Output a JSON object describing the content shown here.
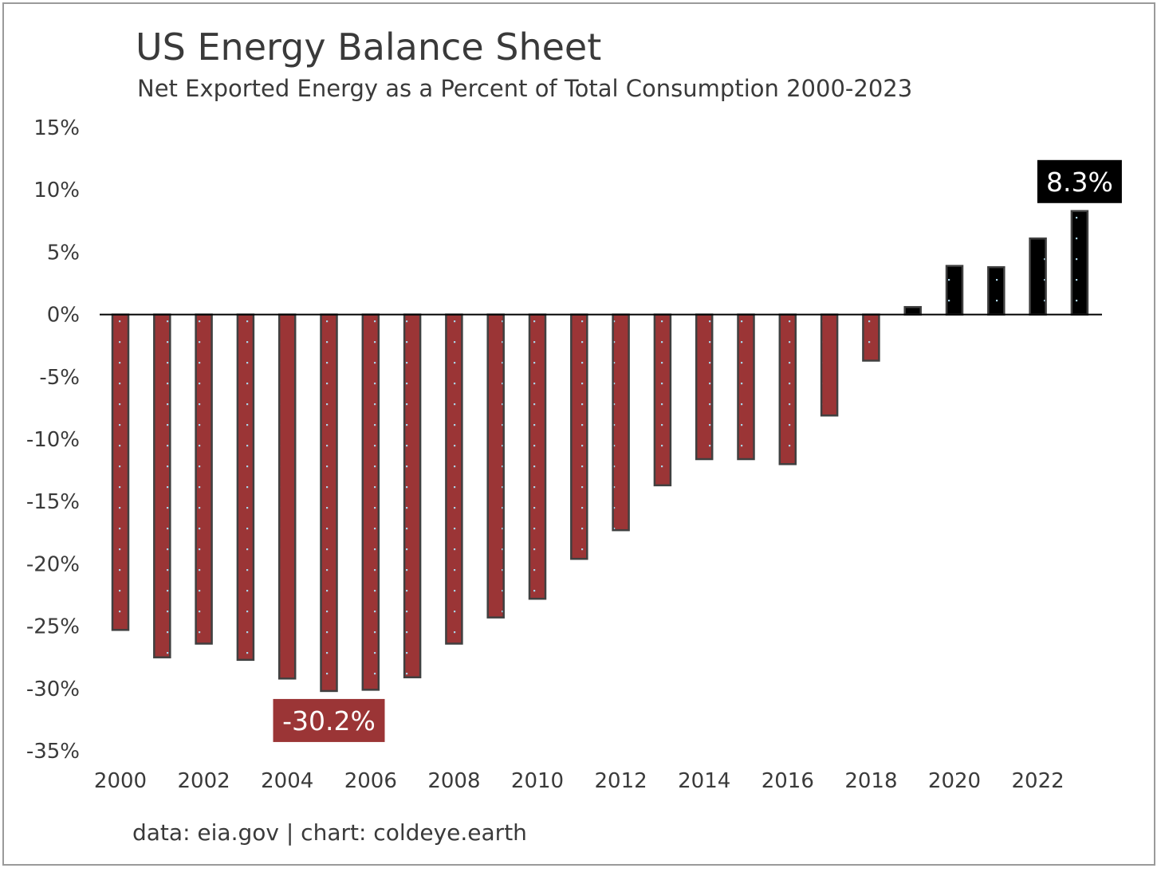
{
  "title": "US Energy Balance Sheet",
  "subtitle": "Net Exported Energy as a Percent of Total Consumption 2000-2023",
  "source": "data: eia.gov | chart: coldeye.earth",
  "colors": {
    "negative": "#9b3536",
    "positive": "#000000",
    "bar_outline": "#404040",
    "pattern_dot": "#a9d4e8",
    "text": "#3a3a3a"
  },
  "chart_data": {
    "type": "bar",
    "title": "US Energy Balance Sheet",
    "subtitle": "Net Exported Energy as a Percent of Total Consumption 2000-2023",
    "xlabel": "",
    "ylabel": "",
    "ylim": [
      -35,
      15
    ],
    "y_ticks": [
      15,
      10,
      5,
      0,
      -5,
      -10,
      -15,
      -20,
      -25,
      -30,
      -35
    ],
    "y_tick_labels": [
      "15%",
      "10%",
      "5%",
      "0%",
      "-5%",
      "-10%",
      "-15%",
      "-20%",
      "-25%",
      "-30%",
      "-35%"
    ],
    "x_tick_labels": [
      "2000",
      "2002",
      "2004",
      "2006",
      "2008",
      "2010",
      "2012",
      "2014",
      "2016",
      "2018",
      "2020",
      "2022"
    ],
    "categories": [
      "2000",
      "2001",
      "2002",
      "2003",
      "2004",
      "2005",
      "2006",
      "2007",
      "2008",
      "2009",
      "2010",
      "2011",
      "2012",
      "2013",
      "2014",
      "2015",
      "2016",
      "2017",
      "2018",
      "2019",
      "2020",
      "2021",
      "2022",
      "2023"
    ],
    "values": [
      -25.3,
      -27.5,
      -26.4,
      -27.7,
      -29.2,
      -30.2,
      -30.1,
      -29.1,
      -26.4,
      -24.3,
      -22.8,
      -19.6,
      -17.3,
      -13.7,
      -11.6,
      -11.6,
      -12.0,
      -8.1,
      -3.7,
      0.6,
      3.9,
      3.8,
      6.1,
      8.3
    ],
    "grid": false,
    "legend": "none",
    "annotations": [
      {
        "category": "2005",
        "label": "-30.2%"
      },
      {
        "category": "2023",
        "label": "8.3%"
      }
    ]
  }
}
